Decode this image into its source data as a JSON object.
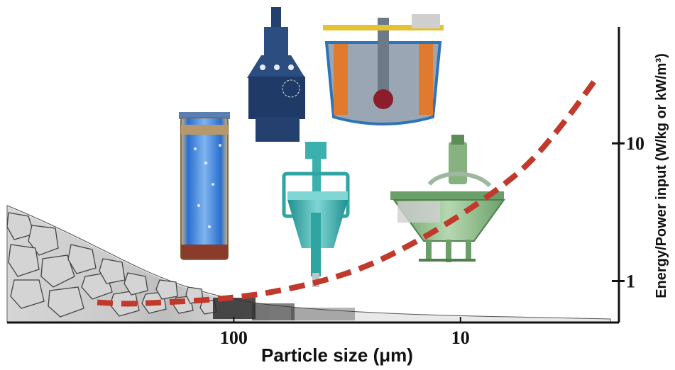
{
  "chart_data": {
    "type": "line",
    "xscale": "log",
    "x_reversed": true,
    "yscale": "log",
    "xlabel": "Particle size (μm)",
    "ylabel": "Energy/Power input  (W/kg or kW/m³)",
    "x_ticks": [
      {
        "value": 100,
        "label": "100"
      },
      {
        "value": 10,
        "label": "10"
      }
    ],
    "y_ticks": [
      {
        "value": 1,
        "label": "1"
      },
      {
        "value": 10,
        "label": "10"
      }
    ],
    "xlim": [
      1000,
      2
    ],
    "ylim": [
      0.5,
      70
    ],
    "grid": false,
    "series": [
      {
        "style": "dashed",
        "color": "#c0392b",
        "x": [
          400,
          300,
          200,
          130,
          100,
          70,
          40,
          25,
          15,
          10,
          7,
          5,
          3.5,
          2.5
        ],
        "y": [
          0.7,
          0.68,
          0.7,
          0.73,
          0.76,
          0.82,
          1.0,
          1.3,
          2.0,
          3.0,
          4.5,
          7.0,
          14,
          30
        ]
      }
    ],
    "illustrations": [
      "coarse-particle-gradient-icon",
      "column-cell-icon",
      "stirred-mill-icon",
      "stirred-tank-icon",
      "hydrocyclone-cell-icon",
      "flotation-cell-icon"
    ]
  }
}
